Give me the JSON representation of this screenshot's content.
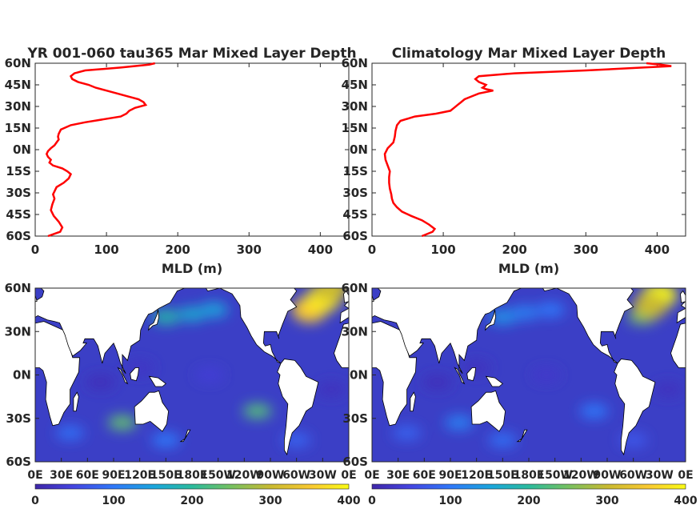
{
  "chart_data": [
    {
      "type": "line",
      "title": "YR 001-060 tau365 Mar Mixed Layer Depth",
      "xlabel": "MLD (m)",
      "ylabel": "",
      "xlim": [
        0,
        440
      ],
      "ylim": [
        -60,
        60
      ],
      "xticks": [
        "0",
        "100",
        "200",
        "300",
        "400"
      ],
      "yticks": [
        "60S",
        "45S",
        "30S",
        "15S",
        "0N",
        "15N",
        "30N",
        "45N",
        "60N"
      ],
      "color": "#ff0000",
      "series": [
        {
          "lat": [
            -60,
            -57,
            -54,
            -50,
            -46,
            -42,
            -38,
            -34,
            -31,
            -29,
            -26,
            -23,
            -20,
            -17,
            -15,
            -13,
            -11,
            -9,
            -7,
            -5,
            -3,
            -1,
            1,
            3,
            5,
            7,
            9,
            11,
            14,
            17,
            19,
            21,
            23,
            25,
            27,
            29,
            31,
            33,
            35,
            37,
            39,
            41,
            43,
            45,
            47,
            49,
            51,
            53,
            55,
            57,
            59,
            60
          ],
          "mld": [
            18,
            35,
            38,
            33,
            26,
            22,
            24,
            27,
            25,
            27,
            30,
            40,
            47,
            50,
            45,
            38,
            25,
            20,
            22,
            18,
            16,
            18,
            22,
            27,
            30,
            33,
            32,
            33,
            36,
            50,
            70,
            95,
            120,
            128,
            132,
            140,
            155,
            152,
            145,
            130,
            115,
            100,
            85,
            75,
            60,
            52,
            50,
            55,
            70,
            120,
            160,
            168
          ]
        }
      ]
    },
    {
      "type": "line",
      "title": "Climatology Mar Mixed Layer Depth",
      "xlabel": "MLD (m)",
      "ylabel": "",
      "xlim": [
        0,
        440
      ],
      "ylim": [
        -60,
        60
      ],
      "xticks": [
        "0",
        "100",
        "200",
        "300",
        "400"
      ],
      "yticks": [
        "60S",
        "45S",
        "30S",
        "15S",
        "0N",
        "15N",
        "30N",
        "45N",
        "60N"
      ],
      "color": "#ff0000",
      "series": [
        {
          "lat": [
            -60,
            -57,
            -55,
            -52,
            -49,
            -46,
            -43,
            -40,
            -37,
            -34,
            -31,
            -27,
            -23,
            -19,
            -15,
            -11,
            -7,
            -3,
            1,
            5,
            9,
            13,
            17,
            20,
            23,
            25,
            27,
            29,
            31,
            33,
            35,
            37,
            39,
            41,
            42,
            43,
            44,
            45,
            47,
            49,
            51,
            53,
            55,
            57,
            58,
            59,
            60
          ],
          "mld": [
            70,
            85,
            88,
            80,
            70,
            55,
            42,
            35,
            30,
            28,
            27,
            25,
            24,
            24,
            25,
            22,
            19,
            18,
            22,
            30,
            32,
            33,
            35,
            40,
            60,
            90,
            110,
            115,
            120,
            125,
            130,
            140,
            150,
            170,
            160,
            155,
            158,
            160,
            150,
            145,
            150,
            200,
            300,
            380,
            420,
            405,
            385
          ]
        }
      ]
    },
    {
      "type": "heatmap",
      "title": "",
      "xlabel": "",
      "ylabel": "",
      "xticks": [
        "0E",
        "30E",
        "60E",
        "90E",
        "120E",
        "150E",
        "180E",
        "150W",
        "120W",
        "90W",
        "60W",
        "30W",
        "0E"
      ],
      "yticks": [
        "60S",
        "30S",
        "0N",
        "30N",
        "60N"
      ],
      "colorbar": {
        "range": [
          0,
          400
        ],
        "ticks": [
          "0",
          "100",
          "200",
          "300",
          "400"
        ]
      },
      "colormap": [
        "#3e26a8",
        "#4444e0",
        "#2f78f9",
        "#1aa6dc",
        "#2bbb9d",
        "#72c163",
        "#c9ba31",
        "#f9c931",
        "#f9fb15"
      ],
      "features": [
        {
          "lon": 120,
          "lat": 5,
          "mld": 25
        },
        {
          "lon": 75,
          "lat": -5,
          "mld": 15
        },
        {
          "lon": 200,
          "lat": 0,
          "mld": 40
        },
        {
          "lon": 340,
          "lat": -10,
          "mld": 20
        },
        {
          "lon": 150,
          "lat": 40,
          "mld": 190
        },
        {
          "lon": 180,
          "lat": 42,
          "mld": 160
        },
        {
          "lon": 205,
          "lat": 45,
          "mld": 150
        },
        {
          "lon": 315,
          "lat": 45,
          "mld": 350
        },
        {
          "lon": 330,
          "lat": 52,
          "mld": 380
        },
        {
          "lon": 340,
          "lat": 60,
          "mld": 300
        },
        {
          "lon": 255,
          "lat": -25,
          "mld": 230
        },
        {
          "lon": 100,
          "lat": -33,
          "mld": 240
        },
        {
          "lon": 40,
          "lat": -40,
          "mld": 90
        },
        {
          "lon": 150,
          "lat": -45,
          "mld": 100
        },
        {
          "lon": 300,
          "lat": -45,
          "mld": 80
        }
      ]
    },
    {
      "type": "heatmap",
      "title": "",
      "xlabel": "",
      "ylabel": "",
      "xticks": [
        "0E",
        "30E",
        "60E",
        "90E",
        "120E",
        "150E",
        "180E",
        "150W",
        "120W",
        "90W",
        "60W",
        "30W",
        "0E"
      ],
      "yticks": [
        "60S",
        "30S",
        "0N",
        "30N",
        "60N"
      ],
      "colorbar": {
        "range": [
          0,
          400
        ],
        "ticks": [
          "0",
          "100",
          "200",
          "300",
          "400"
        ]
      },
      "colormap": [
        "#3e26a8",
        "#4444e0",
        "#2f78f9",
        "#1aa6dc",
        "#2bbb9d",
        "#72c163",
        "#c9ba31",
        "#f9c931",
        "#f9fb15"
      ],
      "features": [
        {
          "lon": 120,
          "lat": 5,
          "mld": 20
        },
        {
          "lon": 75,
          "lat": -5,
          "mld": 15
        },
        {
          "lon": 200,
          "lat": 0,
          "mld": 30
        },
        {
          "lon": 340,
          "lat": -10,
          "mld": 20
        },
        {
          "lon": 150,
          "lat": 40,
          "mld": 130
        },
        {
          "lon": 175,
          "lat": 43,
          "mld": 110
        },
        {
          "lon": 205,
          "lat": 45,
          "mld": 100
        },
        {
          "lon": 310,
          "lat": 40,
          "mld": 250
        },
        {
          "lon": 330,
          "lat": 55,
          "mld": 400
        },
        {
          "lon": 320,
          "lat": 48,
          "mld": 300
        },
        {
          "lon": 255,
          "lat": -25,
          "mld": 100
        },
        {
          "lon": 100,
          "lat": -33,
          "mld": 110
        },
        {
          "lon": 40,
          "lat": -40,
          "mld": 80
        },
        {
          "lon": 150,
          "lat": -45,
          "mld": 90
        },
        {
          "lon": 300,
          "lat": -45,
          "mld": 70
        }
      ]
    }
  ]
}
